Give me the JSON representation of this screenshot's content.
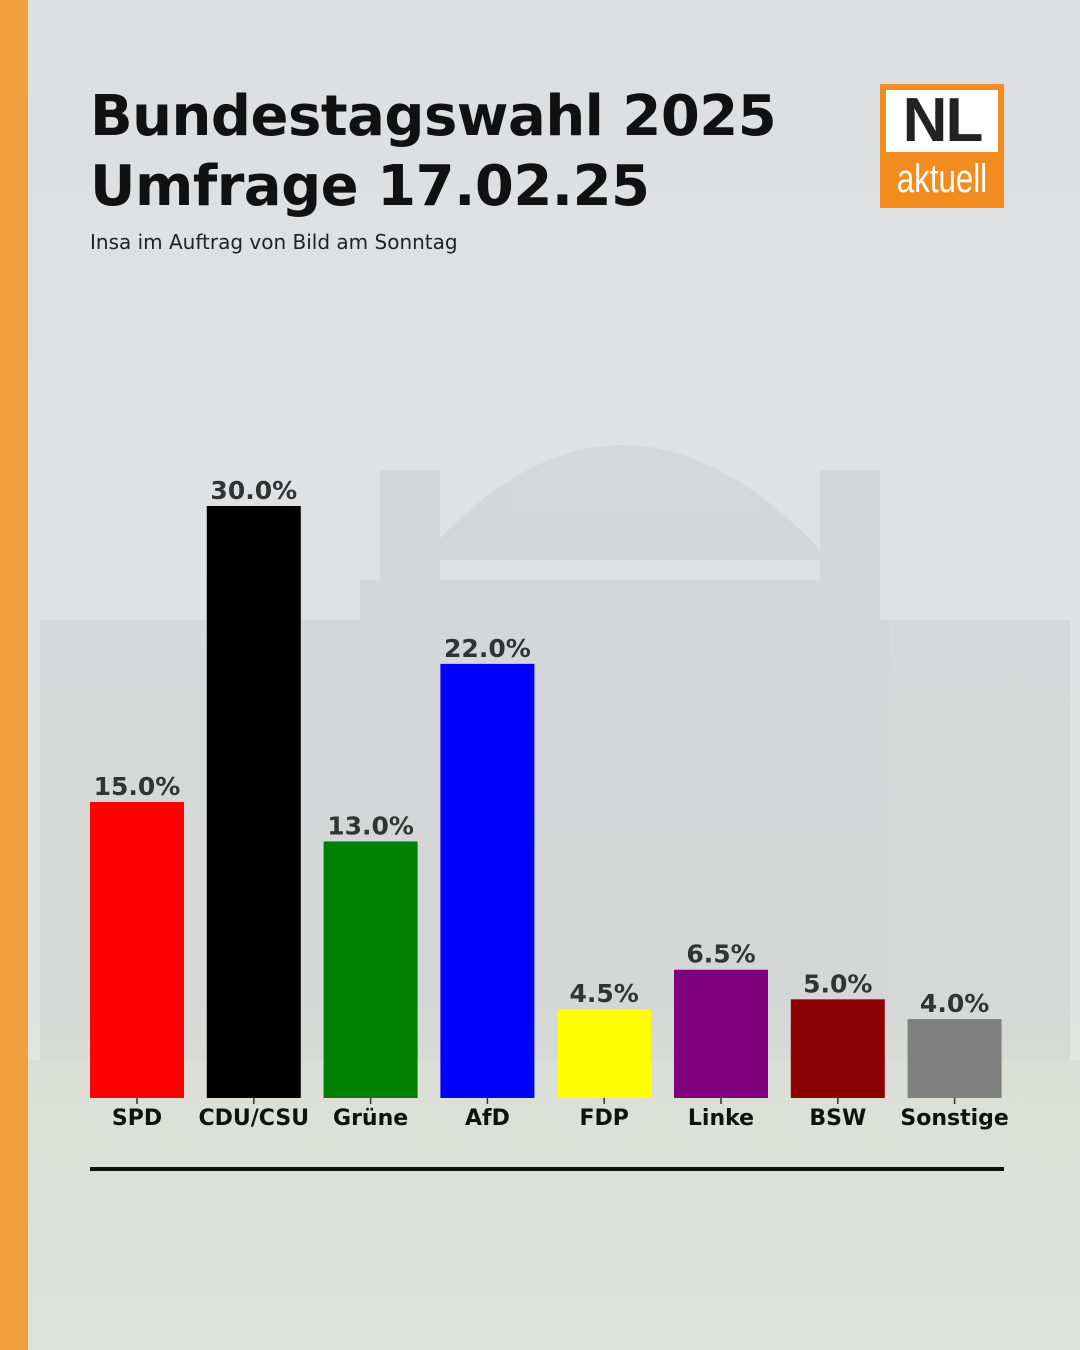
{
  "header": {
    "title_line1": "Bundestagswahl 2025",
    "title_line2": "Umfrage 17.02.25",
    "subtitle": "Insa im Auftrag von Bild am Sonntag"
  },
  "logo": {
    "top_text": "NL",
    "bottom_text": "aktuell",
    "color": "#f28c1e"
  },
  "colors": {
    "accent": "#f0a03c"
  },
  "chart_data": {
    "type": "bar",
    "categories": [
      "SPD",
      "CDU/CSU",
      "Grüne",
      "AfD",
      "FDP",
      "Linke",
      "BSW",
      "Sonstige"
    ],
    "values": [
      15.0,
      30.0,
      13.0,
      22.0,
      4.5,
      6.5,
      5.0,
      4.0
    ],
    "value_labels": [
      "15.0%",
      "30.0%",
      "13.0%",
      "22.0%",
      "4.5%",
      "6.5%",
      "5.0%",
      "4.0%"
    ],
    "colors": [
      "#ff0000",
      "#000000",
      "#008000",
      "#0000ff",
      "#ffff00",
      "#800080",
      "#8b0000",
      "#808080"
    ],
    "unit": "%",
    "ylim": [
      0,
      30
    ],
    "grid": false,
    "title": "",
    "xlabel": "",
    "ylabel": ""
  }
}
